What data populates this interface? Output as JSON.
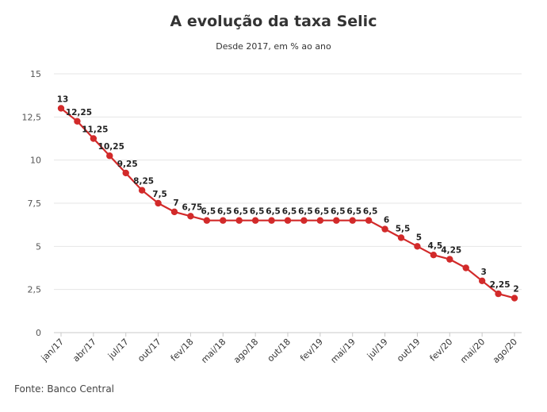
{
  "chart_data": {
    "type": "line",
    "title": "A evolução da taxa Selic",
    "subtitle": "Desde 2017, em % ao ano",
    "source": "Fonte: Banco Central",
    "ylim": [
      0,
      15
    ],
    "yticks": [
      0,
      2.5,
      5,
      7.5,
      10,
      12.5,
      15
    ],
    "ytick_labels": [
      "0",
      "2,5",
      "5",
      "7,5",
      "10",
      "12,5",
      "15"
    ],
    "grid": true,
    "color": "#d22a2a",
    "x_tick_labels": [
      {
        "index": 0,
        "label": "jan/17"
      },
      {
        "index": 2,
        "label": "abr/17"
      },
      {
        "index": 4,
        "label": "jul/17"
      },
      {
        "index": 6,
        "label": "out/17"
      },
      {
        "index": 8,
        "label": "fev/18"
      },
      {
        "index": 10,
        "label": "mai/18"
      },
      {
        "index": 12,
        "label": "ago/18"
      },
      {
        "index": 14,
        "label": "out/18"
      },
      {
        "index": 16,
        "label": "fev/19"
      },
      {
        "index": 18,
        "label": "mai/19"
      },
      {
        "index": 20,
        "label": "jul/19"
      },
      {
        "index": 22,
        "label": "out/19"
      },
      {
        "index": 24,
        "label": "fev/20"
      },
      {
        "index": 26,
        "label": "mai/20"
      },
      {
        "index": 28,
        "label": "ago/20"
      }
    ],
    "values": [
      13,
      12.25,
      11.25,
      10.25,
      9.25,
      8.25,
      7.5,
      7,
      6.75,
      6.5,
      6.5,
      6.5,
      6.5,
      6.5,
      6.5,
      6.5,
      6.5,
      6.5,
      6.5,
      6.5,
      6,
      5.5,
      5,
      4.5,
      4.25,
      3.75,
      3,
      2.25,
      2
    ],
    "data_labels": [
      "13",
      "12,25",
      "11,25",
      "10,25",
      "9,25",
      "8,25",
      "7,5",
      "7",
      "6,75",
      "6,5",
      "6,5",
      "6,5",
      "6,5",
      "6,5",
      "6,5",
      "6,5",
      "6,5",
      "6,5",
      "6,5",
      "6,5",
      "6",
      "5,5",
      "5",
      "4,5",
      "4,25",
      "",
      "3",
      "2,25",
      "2"
    ]
  }
}
